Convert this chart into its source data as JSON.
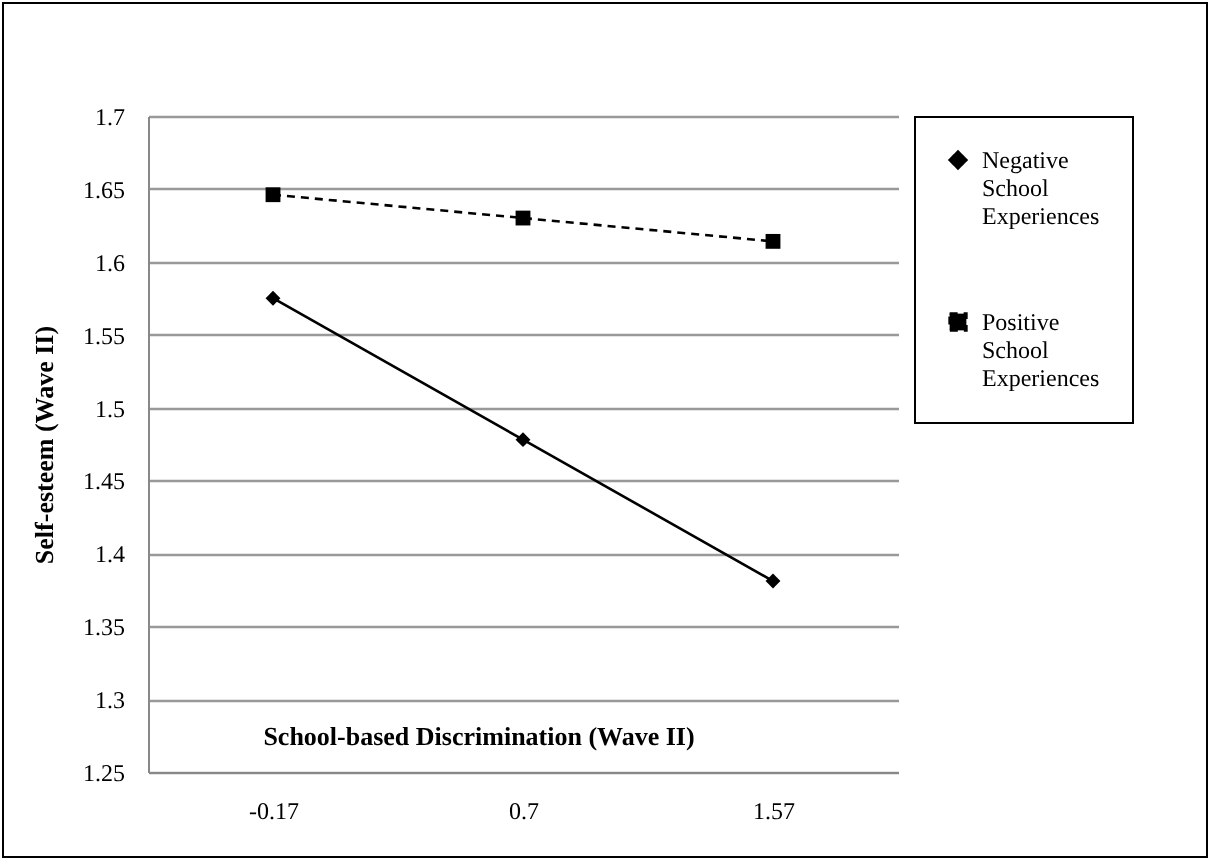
{
  "chart_data": {
    "type": "line",
    "xlabel": "School-based Discrimination (Wave II)",
    "ylabel": "Self-esteem (Wave II)",
    "categories": [
      "-0.17",
      "0.7",
      "1.57"
    ],
    "series": [
      {
        "name": "Negative School Experiences",
        "color": "#000000",
        "values": [
          1.575,
          1.478,
          1.381
        ],
        "marker": "diamond",
        "line_style": "solid"
      },
      {
        "name": "Positive School Experiences",
        "color": "#000000",
        "values": [
          1.646,
          1.63,
          1.614
        ],
        "marker": "square",
        "line_style": "dashed"
      }
    ],
    "ylim": [
      1.25,
      1.7
    ],
    "yticks": [
      1.25,
      1.3,
      1.35,
      1.4,
      1.45,
      1.5,
      1.55,
      1.6,
      1.65,
      1.7
    ],
    "grid": "y",
    "legend": "top right"
  }
}
